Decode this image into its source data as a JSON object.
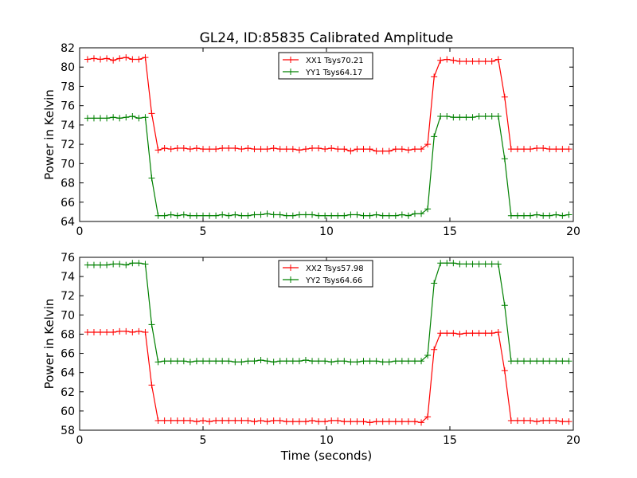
{
  "title": "GL24, ID:85835 Calibrated Amplitude",
  "chart_data": [
    {
      "type": "line",
      "ylabel": "Power in Kelvin",
      "xlabel": "",
      "xlim": [
        0,
        20
      ],
      "ylim": [
        64,
        82
      ],
      "xticks": [
        0,
        5,
        10,
        15,
        20
      ],
      "yticks": [
        64,
        66,
        68,
        70,
        72,
        74,
        76,
        78,
        80,
        82
      ],
      "legend": "top-center",
      "x": [
        0.32,
        0.58,
        0.84,
        1.1,
        1.36,
        1.62,
        1.88,
        2.14,
        2.4,
        2.66,
        2.92,
        3.18,
        3.44,
        3.7,
        3.96,
        4.22,
        4.48,
        4.74,
        5.0,
        5.26,
        5.52,
        5.78,
        6.04,
        6.3,
        6.56,
        6.82,
        7.08,
        7.34,
        7.6,
        7.86,
        8.12,
        8.38,
        8.64,
        8.9,
        9.16,
        9.42,
        9.68,
        9.94,
        10.2,
        10.46,
        10.72,
        10.98,
        11.24,
        11.5,
        11.76,
        12.02,
        12.28,
        12.54,
        12.8,
        13.06,
        13.32,
        13.58,
        13.84,
        14.1,
        14.36,
        14.62,
        14.88,
        15.14,
        15.4,
        15.66,
        15.92,
        16.18,
        16.44,
        16.7,
        16.96,
        17.22,
        17.48,
        17.74,
        18.0,
        18.26,
        18.52,
        18.78,
        19.04,
        19.3,
        19.56,
        19.82
      ],
      "series": [
        {
          "name": "XX1 Tsys70.21",
          "color": "#ff0000",
          "values": [
            80.8,
            80.9,
            80.8,
            80.9,
            80.7,
            80.9,
            81.0,
            80.8,
            80.8,
            81.0,
            75.2,
            71.4,
            71.6,
            71.5,
            71.6,
            71.6,
            71.5,
            71.6,
            71.5,
            71.5,
            71.5,
            71.6,
            71.6,
            71.6,
            71.5,
            71.6,
            71.5,
            71.5,
            71.5,
            71.6,
            71.5,
            71.5,
            71.5,
            71.4,
            71.5,
            71.6,
            71.6,
            71.5,
            71.6,
            71.5,
            71.5,
            71.3,
            71.5,
            71.5,
            71.5,
            71.3,
            71.3,
            71.3,
            71.5,
            71.5,
            71.4,
            71.5,
            71.5,
            72.0,
            79.0,
            80.7,
            80.8,
            80.7,
            80.6,
            80.6,
            80.6,
            80.6,
            80.6,
            80.6,
            80.8,
            76.9,
            71.5,
            71.5,
            71.5,
            71.5,
            71.6,
            71.6,
            71.5,
            71.5,
            71.5,
            71.5
          ]
        },
        {
          "name": "YY1 Tsys64.17",
          "color": "#008000",
          "values": [
            74.7,
            74.7,
            74.7,
            74.7,
            74.8,
            74.7,
            74.8,
            74.9,
            74.7,
            74.8,
            68.5,
            64.6,
            64.6,
            64.7,
            64.6,
            64.7,
            64.6,
            64.6,
            64.6,
            64.6,
            64.6,
            64.7,
            64.6,
            64.7,
            64.6,
            64.6,
            64.7,
            64.7,
            64.8,
            64.7,
            64.7,
            64.6,
            64.6,
            64.7,
            64.7,
            64.7,
            64.6,
            64.6,
            64.6,
            64.6,
            64.6,
            64.7,
            64.7,
            64.6,
            64.6,
            64.7,
            64.6,
            64.6,
            64.6,
            64.7,
            64.6,
            64.8,
            64.8,
            65.3,
            72.8,
            74.9,
            74.9,
            74.8,
            74.8,
            74.8,
            74.8,
            74.9,
            74.9,
            74.9,
            74.9,
            70.5,
            64.6,
            64.6,
            64.6,
            64.6,
            64.7,
            64.6,
            64.6,
            64.7,
            64.6,
            64.7
          ]
        }
      ]
    },
    {
      "type": "line",
      "ylabel": "Power in Kelvin",
      "xlabel": "Time (seconds)",
      "xlim": [
        0,
        20
      ],
      "ylim": [
        58,
        76
      ],
      "xticks": [
        0,
        5,
        10,
        15,
        20
      ],
      "yticks": [
        58,
        60,
        62,
        64,
        66,
        68,
        70,
        72,
        74,
        76
      ],
      "legend": "top-center",
      "x": [
        0.32,
        0.58,
        0.84,
        1.1,
        1.36,
        1.62,
        1.88,
        2.14,
        2.4,
        2.66,
        2.92,
        3.18,
        3.44,
        3.7,
        3.96,
        4.22,
        4.48,
        4.74,
        5.0,
        5.26,
        5.52,
        5.78,
        6.04,
        6.3,
        6.56,
        6.82,
        7.08,
        7.34,
        7.6,
        7.86,
        8.12,
        8.38,
        8.64,
        8.9,
        9.16,
        9.42,
        9.68,
        9.94,
        10.2,
        10.46,
        10.72,
        10.98,
        11.24,
        11.5,
        11.76,
        12.02,
        12.28,
        12.54,
        12.8,
        13.06,
        13.32,
        13.58,
        13.84,
        14.1,
        14.36,
        14.62,
        14.88,
        15.14,
        15.4,
        15.66,
        15.92,
        16.18,
        16.44,
        16.7,
        16.96,
        17.22,
        17.48,
        17.74,
        18.0,
        18.26,
        18.52,
        18.78,
        19.04,
        19.3,
        19.56,
        19.82
      ],
      "series": [
        {
          "name": "XX2 Tsys57.98",
          "color": "#ff0000",
          "values": [
            68.2,
            68.2,
            68.2,
            68.2,
            68.2,
            68.3,
            68.3,
            68.2,
            68.3,
            68.2,
            62.7,
            59.0,
            59.0,
            59.0,
            59.0,
            59.0,
            59.0,
            58.9,
            59.0,
            58.9,
            59.0,
            59.0,
            59.0,
            59.0,
            59.0,
            59.0,
            58.9,
            59.0,
            58.9,
            59.0,
            59.0,
            58.9,
            58.9,
            58.9,
            58.9,
            59.0,
            58.9,
            58.9,
            59.0,
            59.0,
            58.9,
            58.9,
            58.9,
            58.9,
            58.8,
            58.9,
            58.9,
            58.9,
            58.9,
            58.9,
            58.9,
            58.9,
            58.8,
            59.4,
            66.4,
            68.1,
            68.1,
            68.1,
            68.0,
            68.1,
            68.1,
            68.1,
            68.1,
            68.1,
            68.2,
            64.2,
            59.0,
            59.0,
            59.0,
            59.0,
            58.9,
            59.0,
            59.0,
            59.0,
            58.9,
            58.9
          ]
        },
        {
          "name": "YY2 Tsys64.66",
          "color": "#008000",
          "values": [
            75.2,
            75.2,
            75.2,
            75.2,
            75.3,
            75.3,
            75.2,
            75.4,
            75.4,
            75.3,
            69.0,
            65.1,
            65.2,
            65.2,
            65.2,
            65.2,
            65.1,
            65.2,
            65.2,
            65.2,
            65.2,
            65.2,
            65.2,
            65.1,
            65.1,
            65.2,
            65.2,
            65.3,
            65.2,
            65.1,
            65.2,
            65.2,
            65.2,
            65.2,
            65.3,
            65.2,
            65.2,
            65.2,
            65.1,
            65.2,
            65.2,
            65.1,
            65.1,
            65.2,
            65.2,
            65.2,
            65.1,
            65.1,
            65.2,
            65.2,
            65.2,
            65.2,
            65.2,
            65.8,
            73.3,
            75.4,
            75.4,
            75.4,
            75.3,
            75.3,
            75.3,
            75.3,
            75.3,
            75.3,
            75.3,
            71.0,
            65.2,
            65.2,
            65.2,
            65.2,
            65.2,
            65.2,
            65.2,
            65.2,
            65.2,
            65.2
          ]
        }
      ]
    }
  ]
}
